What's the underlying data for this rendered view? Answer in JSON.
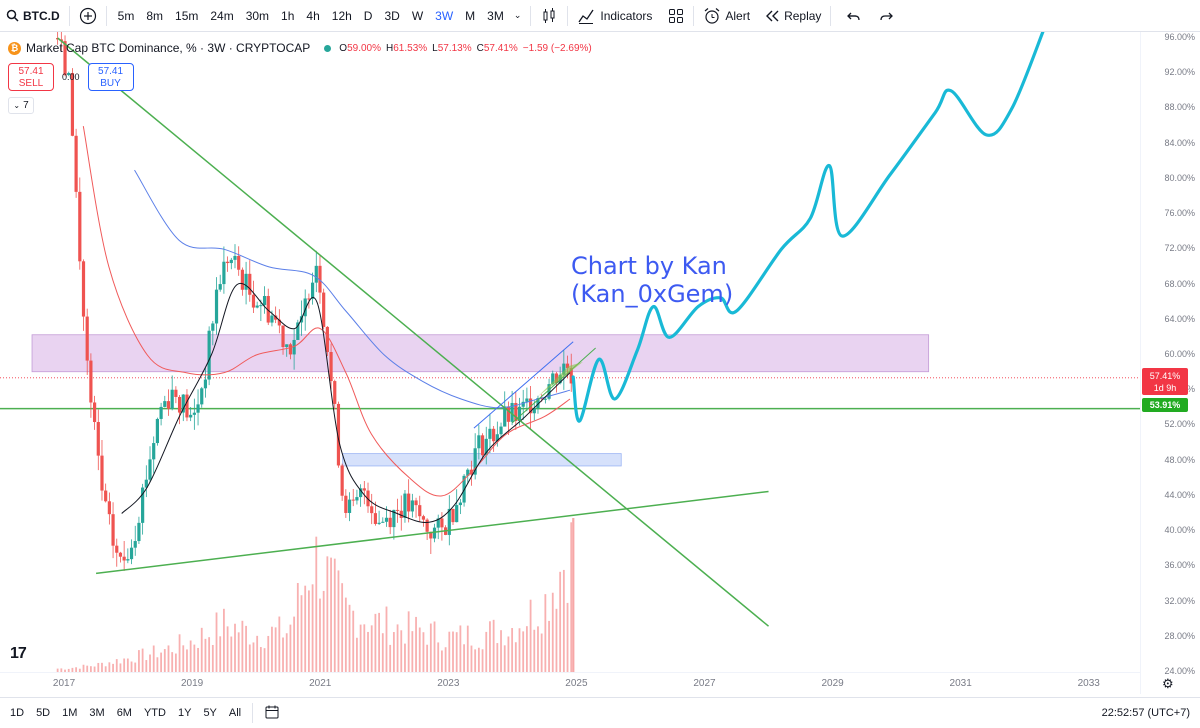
{
  "toolbar": {
    "symbol": "BTC.D",
    "intervals": [
      "5m",
      "8m",
      "15m",
      "24m",
      "30m",
      "1h",
      "4h",
      "12h",
      "D",
      "3D",
      "W",
      "3W",
      "M",
      "3M"
    ],
    "active_interval": "3W",
    "indicators_label": "Indicators",
    "alert_label": "Alert",
    "replay_label": "Replay"
  },
  "legend": {
    "title": "Market Cap BTC Dominance, % · 3W · CRYPTOCAP",
    "coin_glyph": "₿",
    "open_label": "O",
    "open": "59.00%",
    "high_label": "H",
    "high": "61.53%",
    "low_label": "L",
    "low": "57.13%",
    "close_label": "C",
    "close": "57.41%",
    "change": "−1.59 (−2.69%)"
  },
  "trade": {
    "sell_price": "57.41",
    "sell_label": "SELL",
    "spread": "0.00",
    "buy_price": "57.41",
    "buy_label": "BUY"
  },
  "indicator_count": "7",
  "price_axis": {
    "ticks": [
      "96.00%",
      "92.00%",
      "88.00%",
      "84.00%",
      "80.00%",
      "76.00%",
      "72.00%",
      "68.00%",
      "64.00%",
      "60.00%",
      "56.00%",
      "52.00%",
      "48.00%",
      "44.00%",
      "40.00%",
      "36.00%",
      "32.00%",
      "28.00%",
      "24.00%"
    ],
    "current_price": "57.41%",
    "countdown": "1d 9h",
    "level_price": "53.91%"
  },
  "time_axis": {
    "ticks": [
      "2017",
      "2019",
      "2021",
      "2023",
      "2025",
      "2027",
      "2029",
      "2031",
      "2033"
    ]
  },
  "annotation": {
    "line1": "Chart by Kan",
    "line2": "(Kan_0xGem)"
  },
  "bottom_bar": {
    "ranges": [
      "1D",
      "5D",
      "1M",
      "3M",
      "6M",
      "YTD",
      "1Y",
      "5Y",
      "All"
    ],
    "clock": "22:52:57 (UTC+7)"
  },
  "chart_data": {
    "type": "candlestick",
    "symbol": "BTC.D",
    "interval": "3W",
    "ylim": [
      24,
      96
    ],
    "xlim": [
      2016.0,
      2033.8
    ],
    "price_path": [
      [
        2016.9,
        96
      ],
      [
        2017.1,
        90
      ],
      [
        2017.25,
        70
      ],
      [
        2017.4,
        55
      ],
      [
        2017.5,
        50
      ],
      [
        2017.6,
        44
      ],
      [
        2017.75,
        39
      ],
      [
        2017.9,
        36
      ],
      [
        2018.1,
        40
      ],
      [
        2018.3,
        47
      ],
      [
        2018.5,
        54
      ],
      [
        2018.7,
        56
      ],
      [
        2018.9,
        54
      ],
      [
        2019.0,
        52
      ],
      [
        2019.2,
        58
      ],
      [
        2019.4,
        68
      ],
      [
        2019.55,
        71
      ],
      [
        2019.7,
        70
      ],
      [
        2019.9,
        67
      ],
      [
        2020.1,
        66
      ],
      [
        2020.3,
        64
      ],
      [
        2020.5,
        61
      ],
      [
        2020.7,
        63
      ],
      [
        2020.85,
        69
      ],
      [
        2020.95,
        71
      ],
      [
        2021.05,
        65
      ],
      [
        2021.2,
        55
      ],
      [
        2021.35,
        44
      ],
      [
        2021.5,
        42
      ],
      [
        2021.7,
        45
      ],
      [
        2021.9,
        41
      ],
      [
        2022.1,
        42
      ],
      [
        2022.3,
        43
      ],
      [
        2022.5,
        42
      ],
      [
        2022.7,
        40
      ],
      [
        2022.9,
        40
      ],
      [
        2023.1,
        43
      ],
      [
        2023.3,
        47
      ],
      [
        2023.5,
        50
      ],
      [
        2023.7,
        51
      ],
      [
        2023.9,
        53
      ],
      [
        2024.1,
        53
      ],
      [
        2024.3,
        55
      ],
      [
        2024.5,
        56
      ],
      [
        2024.7,
        58
      ],
      [
        2024.85,
        59
      ],
      [
        2024.95,
        57.41
      ]
    ],
    "volume_path": [
      [
        2017.0,
        1
      ],
      [
        2017.5,
        2
      ],
      [
        2018.0,
        4
      ],
      [
        2018.5,
        6
      ],
      [
        2019.0,
        9
      ],
      [
        2019.5,
        14
      ],
      [
        2020.0,
        11
      ],
      [
        2020.5,
        12
      ],
      [
        2020.9,
        34
      ],
      [
        2021.1,
        28
      ],
      [
        2021.4,
        18
      ],
      [
        2021.8,
        15
      ],
      [
        2022.2,
        13
      ],
      [
        2022.6,
        12
      ],
      [
        2023.0,
        10
      ],
      [
        2023.5,
        11
      ],
      [
        2024.0,
        13
      ],
      [
        2024.5,
        20
      ],
      [
        2024.9,
        36
      ]
    ],
    "moving_average_ma1": [
      [
        2017.9,
        42
      ],
      [
        2018.3,
        45
      ],
      [
        2018.8,
        53
      ],
      [
        2019.3,
        60
      ],
      [
        2019.7,
        68
      ],
      [
        2020.2,
        65
      ],
      [
        2020.6,
        63
      ],
      [
        2020.95,
        66
      ],
      [
        2021.3,
        50
      ],
      [
        2021.7,
        44
      ],
      [
        2022.2,
        42
      ],
      [
        2022.7,
        41
      ],
      [
        2023.1,
        43
      ],
      [
        2023.6,
        49
      ],
      [
        2024.2,
        53
      ],
      [
        2024.9,
        58
      ]
    ],
    "moving_average_ma2": [
      [
        2017.3,
        86
      ],
      [
        2017.7,
        70
      ],
      [
        2018.3,
        60
      ],
      [
        2018.9,
        58
      ],
      [
        2019.5,
        58
      ],
      [
        2020.0,
        60
      ],
      [
        2020.6,
        61
      ],
      [
        2021.0,
        63
      ],
      [
        2021.4,
        58
      ],
      [
        2021.8,
        51
      ],
      [
        2022.4,
        46
      ],
      [
        2022.9,
        44
      ],
      [
        2023.4,
        47
      ],
      [
        2023.9,
        51
      ],
      [
        2024.5,
        53
      ],
      [
        2024.9,
        55
      ]
    ],
    "moving_average_ma3": [
      [
        2018.1,
        81
      ],
      [
        2018.8,
        73
      ],
      [
        2019.5,
        72
      ],
      [
        2020.2,
        70
      ],
      [
        2020.9,
        69
      ],
      [
        2021.4,
        65
      ],
      [
        2022.0,
        60
      ],
      [
        2022.6,
        57
      ],
      [
        2023.2,
        55
      ],
      [
        2023.8,
        54
      ],
      [
        2024.4,
        55
      ],
      [
        2024.9,
        56
      ]
    ],
    "projection_path": [
      [
        2024.95,
        57.5
      ],
      [
        2025.05,
        52.5
      ],
      [
        2025.35,
        59.5
      ],
      [
        2025.6,
        55
      ],
      [
        2025.95,
        60.5
      ],
      [
        2026.2,
        65.5
      ],
      [
        2026.45,
        62
      ],
      [
        2026.9,
        65.5
      ],
      [
        2027.25,
        66.5
      ],
      [
        2027.5,
        65
      ],
      [
        2028.2,
        72
      ],
      [
        2028.65,
        75.5
      ],
      [
        2028.95,
        81.5
      ],
      [
        2029.15,
        73.5
      ],
      [
        2029.9,
        80.5
      ],
      [
        2030.6,
        87.5
      ],
      [
        2030.85,
        90
      ],
      [
        2031.4,
        85
      ],
      [
        2031.8,
        88
      ],
      [
        2032.3,
        97
      ]
    ],
    "trendlines": [
      {
        "name": "descending",
        "points": [
          [
            2016.9,
            96
          ],
          [
            2028.0,
            29.2
          ]
        ]
      },
      {
        "name": "ascending support",
        "points": [
          [
            2017.5,
            35.2
          ],
          [
            2028.0,
            44.5
          ]
        ]
      },
      {
        "name": "wedge upper",
        "points": [
          [
            2023.4,
            51.7
          ],
          [
            2024.95,
            61.5
          ]
        ]
      },
      {
        "name": "wedge lower",
        "points": [
          [
            2024.0,
            52.3
          ],
          [
            2025.3,
            60.8
          ]
        ]
      }
    ],
    "horizontal_levels": [
      {
        "name": "support",
        "value": 53.91
      },
      {
        "name": "last close",
        "value": 57.41
      }
    ],
    "zones": [
      {
        "name": "resistance zone",
        "x": [
          2016.5,
          2030.5
        ],
        "y": [
          58.1,
          62.3
        ]
      },
      {
        "name": "demand zone",
        "x": [
          2021.35,
          2025.7
        ],
        "y": [
          47.4,
          48.8
        ]
      }
    ],
    "colors": {
      "candle_up": "#26a69a",
      "candle_down": "#ef5350",
      "volume": "#f7a7a7",
      "ma1": "#131722",
      "ma2": "#f05a5a",
      "ma3": "#5b7fe8",
      "projection": "#19b9d6",
      "trendline": "#4caf50",
      "resistance_zone": "#e6ccef",
      "demand_zone": "#cfdcfb",
      "annotation": "#3d5af1"
    }
  }
}
